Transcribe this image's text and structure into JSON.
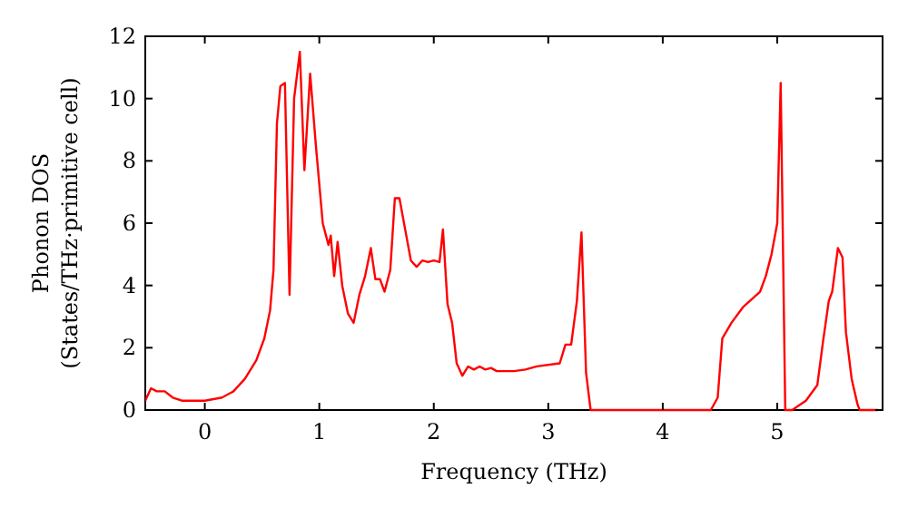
{
  "chart_data": {
    "type": "line",
    "xlabel": "Frequency (THz)",
    "ylabel": "Phonon DOS\n(States/THz·primitive cell)",
    "xlim": [
      -0.52,
      5.92
    ],
    "ylim": [
      0,
      12
    ],
    "xticks": [
      0,
      1,
      2,
      3,
      4,
      5
    ],
    "yticks": [
      0,
      2,
      4,
      6,
      8,
      10,
      12
    ],
    "grid": false,
    "marker": "none",
    "line_style": "solid",
    "series": [
      {
        "color": "#ff0000",
        "x": [
          -0.52,
          -0.47,
          -0.42,
          -0.35,
          -0.28,
          -0.2,
          0,
          0.15,
          0.25,
          0.35,
          0.45,
          0.52,
          0.57,
          0.6,
          0.63,
          0.66,
          0.7,
          0.74,
          0.78,
          0.83,
          0.87,
          0.92,
          0.97,
          1.03,
          1.08,
          1.1,
          1.13,
          1.16,
          1.2,
          1.25,
          1.3,
          1.35,
          1.4,
          1.45,
          1.49,
          1.53,
          1.57,
          1.62,
          1.66,
          1.7,
          1.75,
          1.8,
          1.85,
          1.9,
          1.95,
          2.0,
          2.05,
          2.08,
          2.12,
          2.16,
          2.2,
          2.25,
          2.3,
          2.35,
          2.4,
          2.45,
          2.5,
          2.55,
          2.6,
          2.7,
          2.8,
          2.9,
          3.1,
          3.15,
          3.2,
          3.25,
          3.29,
          3.33,
          3.37,
          4.42,
          4.48,
          4.52,
          4.6,
          4.7,
          4.85,
          4.9,
          4.95,
          5.0,
          5.03,
          5.07,
          5.13,
          5.25,
          5.35,
          5.4,
          5.45,
          5.48,
          5.53,
          5.57,
          5.6,
          5.65,
          5.7,
          5.72,
          5.88
        ],
        "values": [
          0.3,
          0.7,
          0.6,
          0.6,
          0.4,
          0.3,
          0.3,
          0.4,
          0.6,
          1.0,
          1.6,
          2.3,
          3.2,
          4.5,
          9.2,
          10.4,
          10.5,
          3.7,
          10,
          11.5,
          7.7,
          10.8,
          8.5,
          6.0,
          5.3,
          5.6,
          4.3,
          5.4,
          4.0,
          3.1,
          2.8,
          3.7,
          4.3,
          5.2,
          4.2,
          4.2,
          3.8,
          4.5,
          6.8,
          6.8,
          5.8,
          4.8,
          4.6,
          4.8,
          4.75,
          4.8,
          4.75,
          5.8,
          3.4,
          2.8,
          1.5,
          1.1,
          1.4,
          1.3,
          1.4,
          1.3,
          1.35,
          1.25,
          1.25,
          1.25,
          1.3,
          1.4,
          1.5,
          2.1,
          2.1,
          3.5,
          5.7,
          1.2,
          0,
          0,
          0.4,
          2.3,
          2.8,
          3.3,
          3.8,
          4.3,
          5,
          6.0,
          10.5,
          0,
          0,
          0.3,
          0.8,
          2.2,
          3.5,
          3.8,
          5.2,
          4.9,
          2.5,
          1.0,
          0.2,
          0,
          0
        ]
      }
    ]
  }
}
